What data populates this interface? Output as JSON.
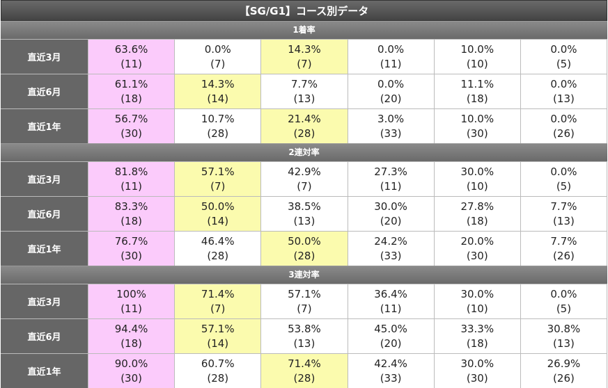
{
  "title": "【SG/G1】コース別データ",
  "sections": [
    {
      "title": "1着率",
      "rows": [
        {
          "label": "直近3月",
          "cells": [
            {
              "rate": "63.6%",
              "count": "(11)",
              "color": "#fbcbfb"
            },
            {
              "rate": "0.0%",
              "count": "(7)"
            },
            {
              "rate": "14.3%",
              "count": "(7)",
              "color": "#fbfbae"
            },
            {
              "rate": "0.0%",
              "count": "(11)"
            },
            {
              "rate": "10.0%",
              "count": "(10)"
            },
            {
              "rate": "0.0%",
              "count": "(5)"
            }
          ]
        },
        {
          "label": "直近6月",
          "cells": [
            {
              "rate": "61.1%",
              "count": "(18)",
              "color": "#fbcbfb"
            },
            {
              "rate": "14.3%",
              "count": "(14)",
              "color": "#fbfbae"
            },
            {
              "rate": "7.7%",
              "count": "(13)"
            },
            {
              "rate": "0.0%",
              "count": "(20)"
            },
            {
              "rate": "11.1%",
              "count": "(18)"
            },
            {
              "rate": "0.0%",
              "count": "(13)"
            }
          ]
        },
        {
          "label": "直近1年",
          "cells": [
            {
              "rate": "56.7%",
              "count": "(30)",
              "color": "#fbcbfb"
            },
            {
              "rate": "10.7%",
              "count": "(28)"
            },
            {
              "rate": "21.4%",
              "count": "(28)",
              "color": "#fbfbae"
            },
            {
              "rate": "3.0%",
              "count": "(33)"
            },
            {
              "rate": "10.0%",
              "count": "(30)"
            },
            {
              "rate": "0.0%",
              "count": "(26)"
            }
          ]
        }
      ]
    },
    {
      "title": "2連対率",
      "rows": [
        {
          "label": "直近3月",
          "cells": [
            {
              "rate": "81.8%",
              "count": "(11)",
              "color": "#fbcbfb"
            },
            {
              "rate": "57.1%",
              "count": "(7)",
              "color": "#fbfbae"
            },
            {
              "rate": "42.9%",
              "count": "(7)"
            },
            {
              "rate": "27.3%",
              "count": "(11)"
            },
            {
              "rate": "30.0%",
              "count": "(10)"
            },
            {
              "rate": "0.0%",
              "count": "(5)"
            }
          ]
        },
        {
          "label": "直近6月",
          "cells": [
            {
              "rate": "83.3%",
              "count": "(18)",
              "color": "#fbcbfb"
            },
            {
              "rate": "50.0%",
              "count": "(14)",
              "color": "#fbfbae"
            },
            {
              "rate": "38.5%",
              "count": "(13)"
            },
            {
              "rate": "30.0%",
              "count": "(20)"
            },
            {
              "rate": "27.8%",
              "count": "(18)"
            },
            {
              "rate": "7.7%",
              "count": "(13)"
            }
          ]
        },
        {
          "label": "直近1年",
          "cells": [
            {
              "rate": "76.7%",
              "count": "(30)",
              "color": "#fbcbfb"
            },
            {
              "rate": "46.4%",
              "count": "(28)"
            },
            {
              "rate": "50.0%",
              "count": "(28)",
              "color": "#fbfbae"
            },
            {
              "rate": "24.2%",
              "count": "(33)"
            },
            {
              "rate": "20.0%",
              "count": "(30)"
            },
            {
              "rate": "7.7%",
              "count": "(26)"
            }
          ]
        }
      ]
    },
    {
      "title": "3連対率",
      "rows": [
        {
          "label": "直近3月",
          "cells": [
            {
              "rate": "100%",
              "count": "(11)",
              "color": "#fbcbfb"
            },
            {
              "rate": "71.4%",
              "count": "(7)",
              "color": "#fbfbae"
            },
            {
              "rate": "57.1%",
              "count": "(7)"
            },
            {
              "rate": "36.4%",
              "count": "(11)"
            },
            {
              "rate": "30.0%",
              "count": "(10)"
            },
            {
              "rate": "0.0%",
              "count": "(5)"
            }
          ]
        },
        {
          "label": "直近6月",
          "cells": [
            {
              "rate": "94.4%",
              "count": "(18)",
              "color": "#fbcbfb"
            },
            {
              "rate": "57.1%",
              "count": "(14)",
              "color": "#fbfbae"
            },
            {
              "rate": "53.8%",
              "count": "(13)"
            },
            {
              "rate": "45.0%",
              "count": "(20)"
            },
            {
              "rate": "33.3%",
              "count": "(18)"
            },
            {
              "rate": "30.8%",
              "count": "(13)"
            }
          ]
        },
        {
          "label": "直近1年",
          "cells": [
            {
              "rate": "90.0%",
              "count": "(30)",
              "color": "#fbcbfb"
            },
            {
              "rate": "60.7%",
              "count": "(28)"
            },
            {
              "rate": "71.4%",
              "count": "(28)",
              "color": "#fbfbae"
            },
            {
              "rate": "42.4%",
              "count": "(33)"
            },
            {
              "rate": "30.0%",
              "count": "(30)"
            },
            {
              "rate": "26.9%",
              "count": "(26)"
            }
          ]
        }
      ]
    }
  ]
}
